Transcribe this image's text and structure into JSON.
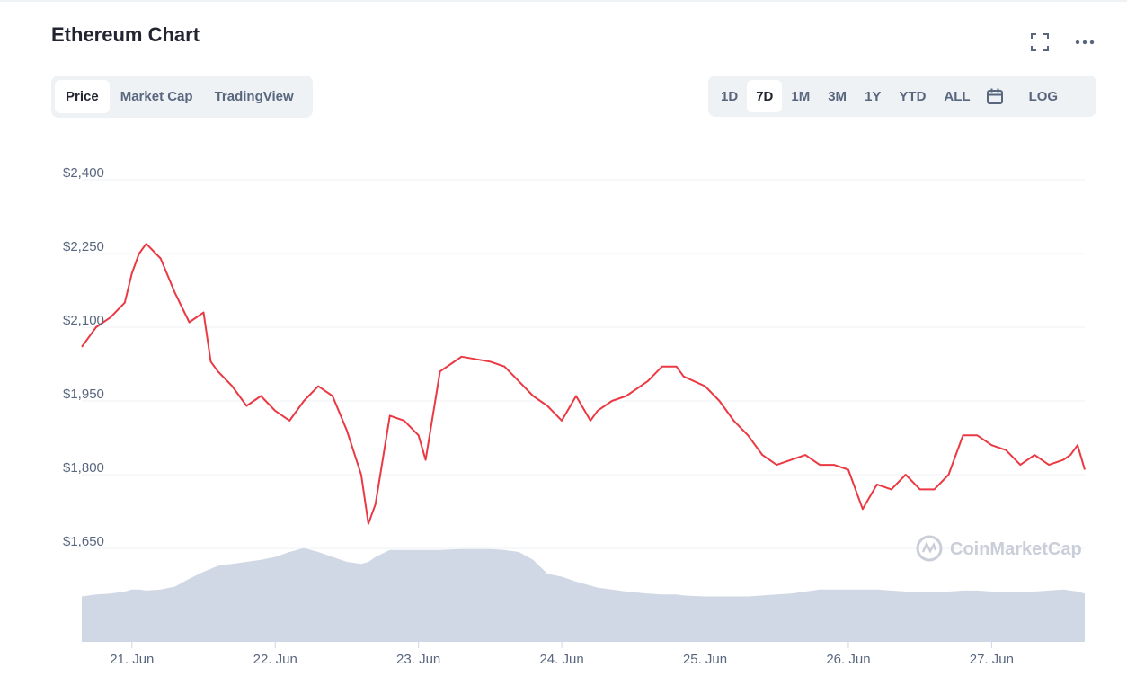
{
  "header": {
    "title": "Ethereum Chart",
    "fullscreen_icon": "fullscreen-icon",
    "more_icon": "more-horizontal-icon"
  },
  "tabs": [
    {
      "label": "Price",
      "active": true
    },
    {
      "label": "Market Cap",
      "active": false
    },
    {
      "label": "TradingView",
      "active": false
    }
  ],
  "ranges": [
    {
      "label": "1D",
      "active": false
    },
    {
      "label": "7D",
      "active": true
    },
    {
      "label": "1M",
      "active": false
    },
    {
      "label": "3M",
      "active": false
    },
    {
      "label": "1Y",
      "active": false
    },
    {
      "label": "YTD",
      "active": false
    },
    {
      "label": "ALL",
      "active": false
    }
  ],
  "calendar_icon": "calendar-icon",
  "log_label": "LOG",
  "watermark": "CoinMarketCap",
  "colors": {
    "line": "#ea3943",
    "volume": "#cfd6e4",
    "grid": "#eff2f5",
    "axis_text": "#58667e",
    "panel": "#eff2f5"
  },
  "chart_data": {
    "type": "line",
    "title": "Ethereum Chart",
    "series": [
      {
        "name": "Price",
        "x": [
          20.65,
          20.75,
          20.85,
          20.95,
          21.0,
          21.05,
          21.1,
          21.2,
          21.3,
          21.4,
          21.5,
          21.55,
          21.6,
          21.7,
          21.8,
          21.9,
          22.0,
          22.1,
          22.2,
          22.3,
          22.4,
          22.5,
          22.6,
          22.65,
          22.7,
          22.8,
          22.9,
          23.0,
          23.05,
          23.15,
          23.3,
          23.5,
          23.6,
          23.7,
          23.8,
          23.9,
          24.0,
          24.1,
          24.2,
          24.25,
          24.35,
          24.45,
          24.6,
          24.7,
          24.8,
          24.85,
          25.0,
          25.1,
          25.2,
          25.3,
          25.4,
          25.5,
          25.6,
          25.7,
          25.8,
          25.9,
          26.0,
          26.1,
          26.2,
          26.3,
          26.4,
          26.5,
          26.6,
          26.7,
          26.8,
          26.9,
          27.0,
          27.1,
          27.2,
          27.3,
          27.4,
          27.5,
          27.55,
          27.6,
          27.65
        ],
        "y": [
          2060,
          2100,
          2120,
          2150,
          2210,
          2250,
          2270,
          2240,
          2170,
          2110,
          2130,
          2030,
          2010,
          1980,
          1940,
          1960,
          1930,
          1910,
          1950,
          1980,
          1960,
          1890,
          1800,
          1700,
          1740,
          1920,
          1910,
          1880,
          1830,
          2010,
          2040,
          2030,
          2020,
          1990,
          1960,
          1940,
          1910,
          1960,
          1910,
          1930,
          1950,
          1960,
          1990,
          2020,
          2020,
          2000,
          1980,
          1950,
          1910,
          1880,
          1840,
          1820,
          1830,
          1840,
          1820,
          1820,
          1810,
          1730,
          1780,
          1770,
          1800,
          1770,
          1770,
          1800,
          1880,
          1880,
          1860,
          1850,
          1820,
          1840,
          1820,
          1830,
          1840,
          1860,
          1810
        ],
        "volume": [
          0.45,
          0.47,
          0.48,
          0.5,
          0.52,
          0.52,
          0.51,
          0.52,
          0.55,
          0.63,
          0.7,
          0.73,
          0.76,
          0.78,
          0.8,
          0.82,
          0.85,
          0.9,
          0.94,
          0.9,
          0.85,
          0.8,
          0.78,
          0.8,
          0.85,
          0.92,
          0.92,
          0.92,
          0.92,
          0.92,
          0.93,
          0.93,
          0.92,
          0.9,
          0.82,
          0.68,
          0.65,
          0.6,
          0.56,
          0.54,
          0.52,
          0.5,
          0.48,
          0.47,
          0.47,
          0.46,
          0.45,
          0.45,
          0.45,
          0.45,
          0.46,
          0.47,
          0.48,
          0.5,
          0.52,
          0.52,
          0.52,
          0.52,
          0.52,
          0.51,
          0.5,
          0.5,
          0.5,
          0.5,
          0.51,
          0.51,
          0.5,
          0.5,
          0.49,
          0.5,
          0.51,
          0.52,
          0.51,
          0.5,
          0.48
        ]
      }
    ],
    "ylim": [
      1590,
      2400
    ],
    "yticks": [
      "$2,400",
      "$2,250",
      "$2,100",
      "$1,950",
      "$1,800",
      "$1,650"
    ],
    "ytick_values": [
      2400,
      2250,
      2100,
      1950,
      1800,
      1650
    ],
    "xlim": [
      20.65,
      27.65
    ],
    "xticks": [
      "21. Jun",
      "22. Jun",
      "23. Jun",
      "24. Jun",
      "25. Jun",
      "26. Jun",
      "27. Jun"
    ],
    "xtick_values": [
      21,
      22,
      23,
      24,
      25,
      26,
      27
    ],
    "xlabel": "",
    "ylabel": "",
    "grid": true,
    "legend": "none"
  }
}
